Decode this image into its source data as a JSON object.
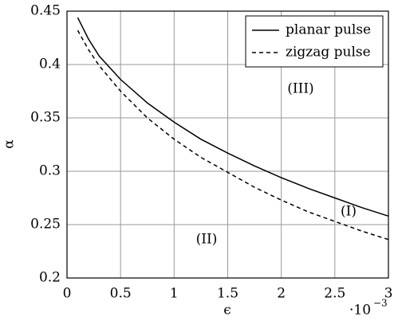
{
  "chart_data": {
    "type": "line",
    "x_label": "ϵ",
    "y_label": "α",
    "x_multiplier": {
      "base": "·10",
      "exponent": "−3"
    },
    "x": [
      0.1,
      0.2,
      0.3,
      0.5,
      0.75,
      1.0,
      1.25,
      1.5,
      1.75,
      2.0,
      2.25,
      2.5,
      2.75,
      3.0
    ],
    "series": [
      {
        "name": "planar pulse",
        "color": "#000000",
        "dash": "solid",
        "values": [
          0.444,
          0.424,
          0.408,
          0.386,
          0.364,
          0.346,
          0.33,
          0.317,
          0.305,
          0.294,
          0.284,
          0.275,
          0.266,
          0.258
        ]
      },
      {
        "name": "zigzag pulse",
        "color": "#000000",
        "dash": "dashed",
        "values": [
          0.432,
          0.414,
          0.399,
          0.375,
          0.35,
          0.33,
          0.313,
          0.299,
          0.285,
          0.273,
          0.262,
          0.253,
          0.244,
          0.236
        ]
      }
    ],
    "annotations": [
      "(III)",
      "(I)",
      "(II)"
    ],
    "xlim": [
      0,
      3
    ],
    "xticks": [
      0,
      0.5,
      1,
      1.5,
      2,
      2.5,
      3
    ],
    "ylim": [
      0.2,
      0.45
    ],
    "yticks": [
      0.2,
      0.25,
      0.3,
      0.35,
      0.4,
      0.45
    ],
    "grid": true,
    "legend": "top-right"
  }
}
